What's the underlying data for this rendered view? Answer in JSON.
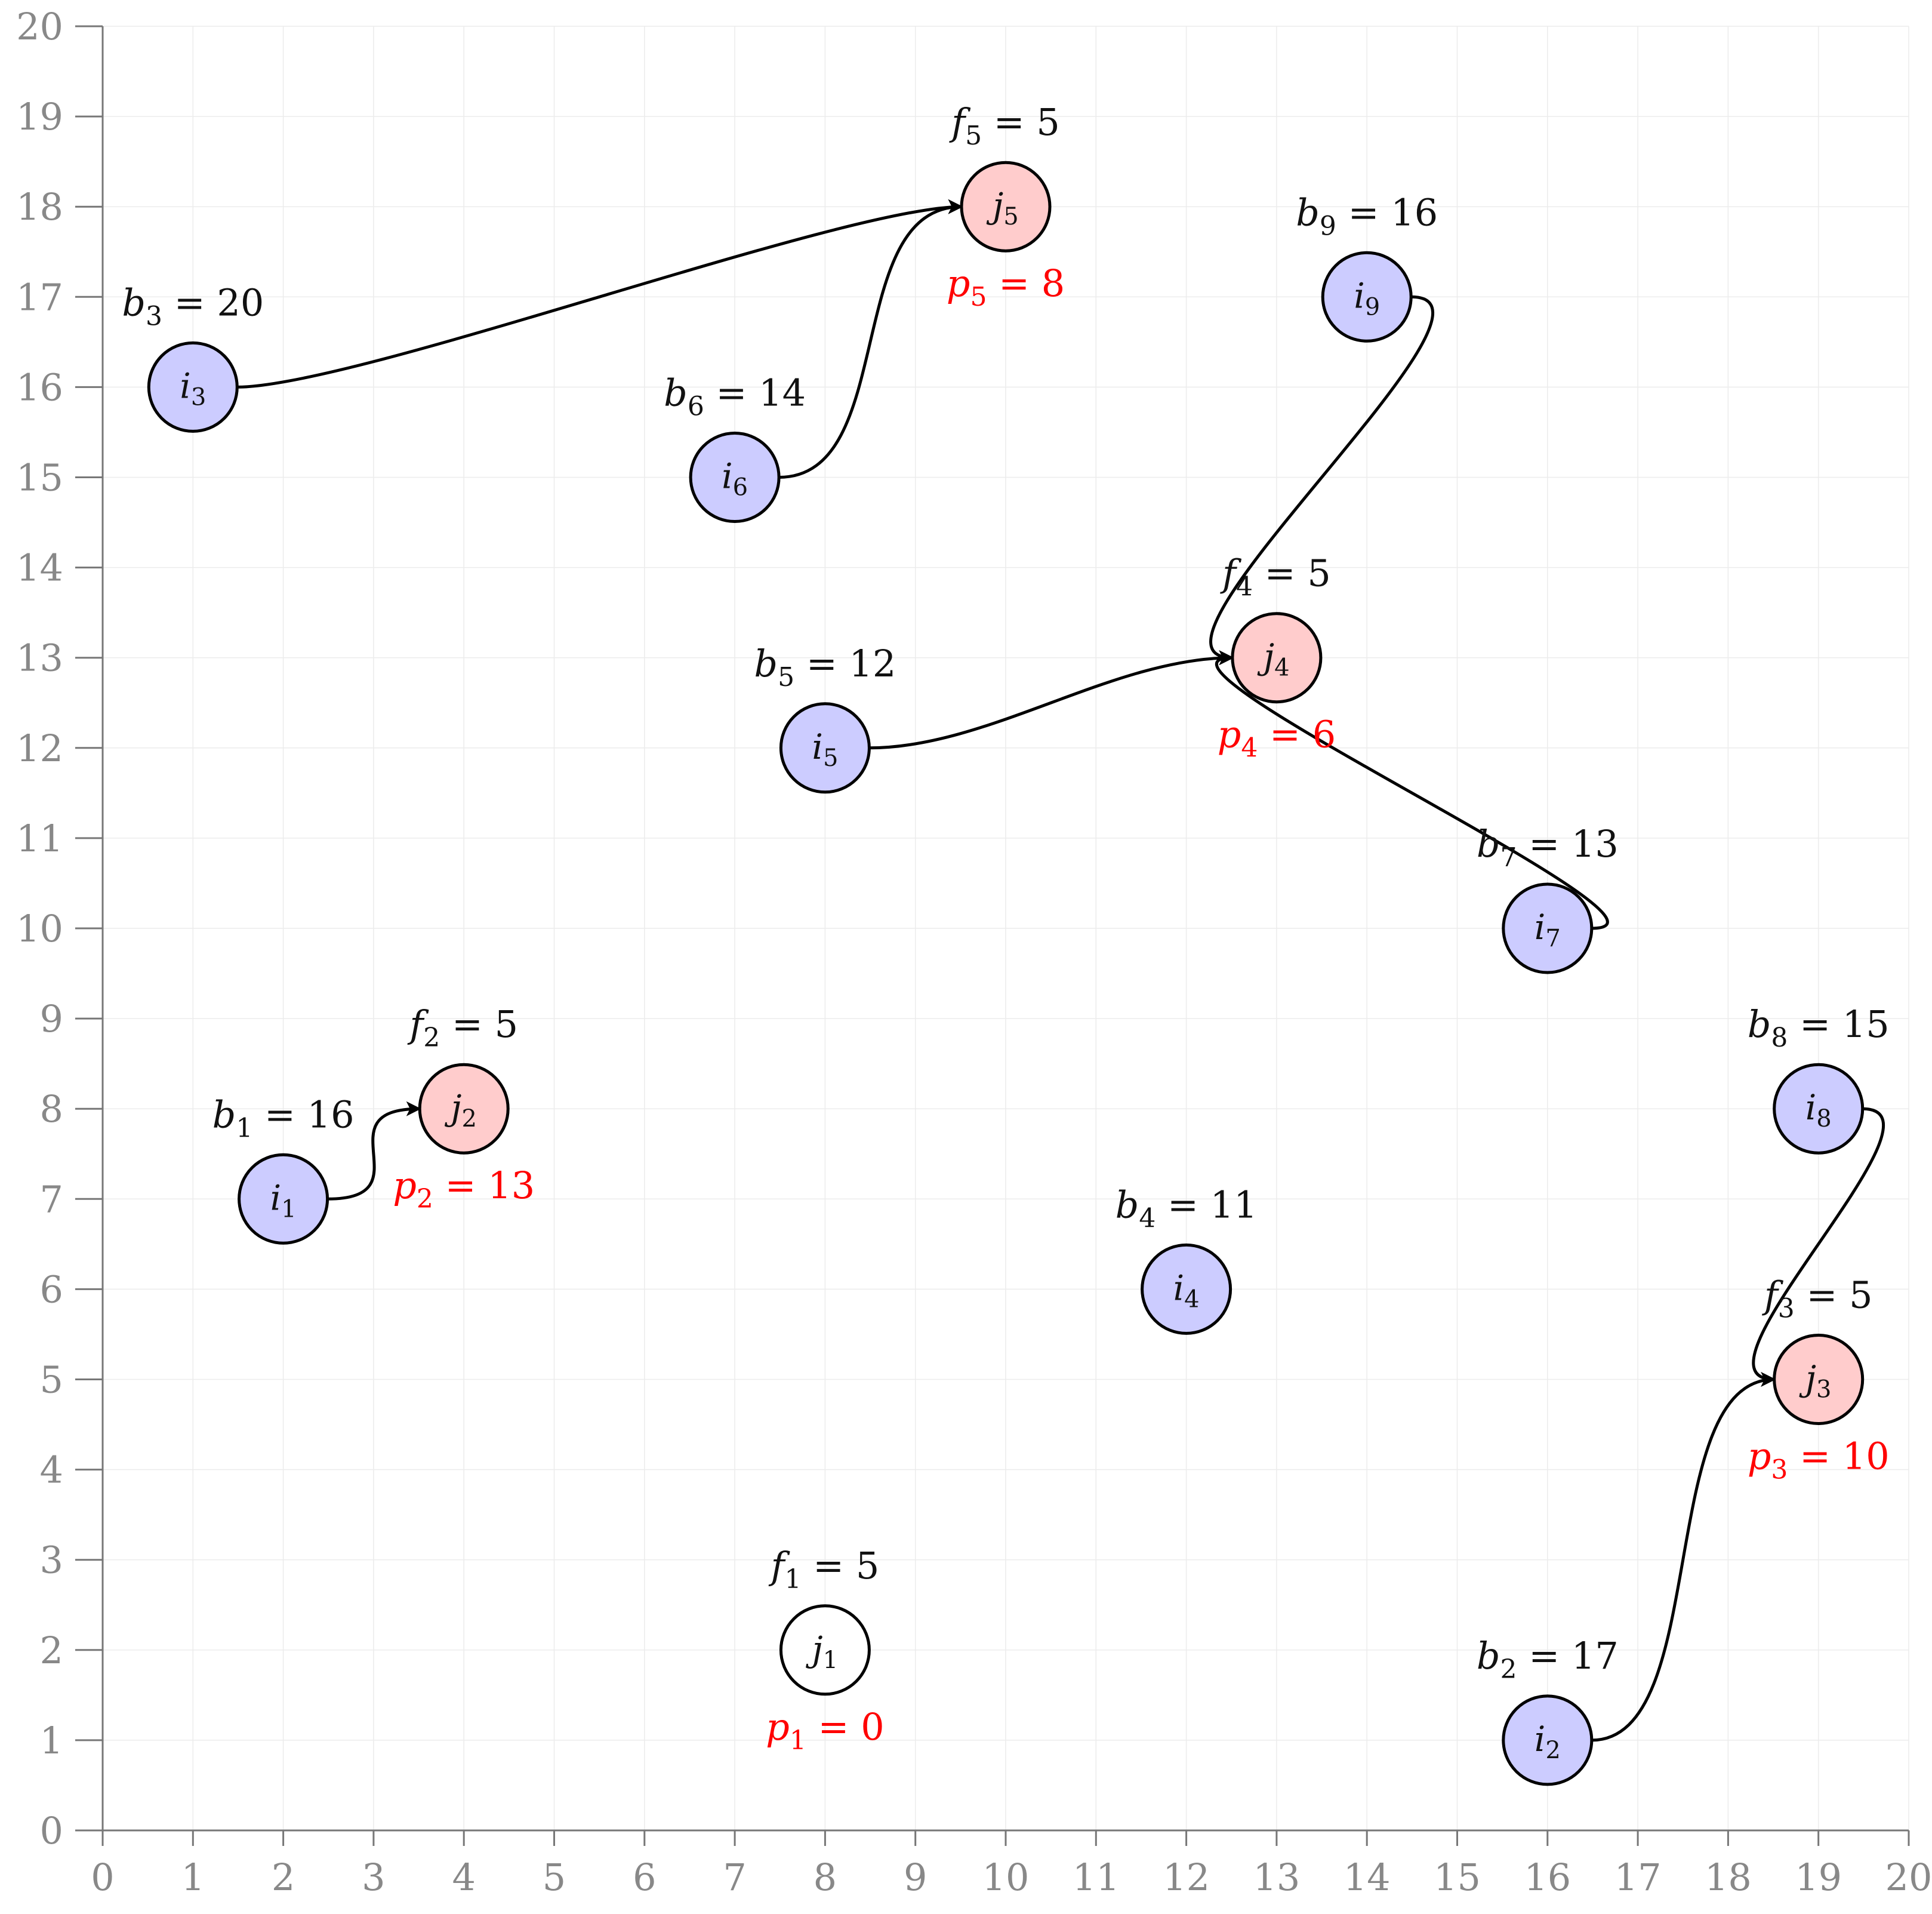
{
  "axes": {
    "x_min": 0,
    "x_max": 20,
    "y_min": 0,
    "y_max": 20,
    "x_ticks": [
      0,
      1,
      2,
      3,
      4,
      5,
      6,
      7,
      8,
      9,
      10,
      11,
      12,
      13,
      14,
      15,
      16,
      17,
      18,
      19,
      20
    ],
    "y_ticks": [
      0,
      1,
      2,
      3,
      4,
      5,
      6,
      7,
      8,
      9,
      10,
      11,
      12,
      13,
      14,
      15,
      16,
      17,
      18,
      19,
      20
    ],
    "grid": true
  },
  "colors": {
    "consumer_fill": "#ccccff",
    "facility_fill": "#ffcccc",
    "inactive_stroke": "#808080",
    "price_text": "#ff0000",
    "label_text": "#111111",
    "tick_text": "#888888"
  },
  "consumers": [
    {
      "id": "i1",
      "letter": "i",
      "sub": "1",
      "x": 2,
      "y": 7,
      "budget_var": "b",
      "budget": "16"
    },
    {
      "id": "i2",
      "letter": "i",
      "sub": "2",
      "x": 16,
      "y": 1,
      "budget_var": "b",
      "budget": "17"
    },
    {
      "id": "i3",
      "letter": "i",
      "sub": "3",
      "x": 1,
      "y": 16,
      "budget_var": "b",
      "budget": "20"
    },
    {
      "id": "i4",
      "letter": "i",
      "sub": "4",
      "x": 12,
      "y": 6,
      "budget_var": "b",
      "budget": "11"
    },
    {
      "id": "i5",
      "letter": "i",
      "sub": "5",
      "x": 8,
      "y": 12,
      "budget_var": "b",
      "budget": "12"
    },
    {
      "id": "i6",
      "letter": "i",
      "sub": "6",
      "x": 7,
      "y": 15,
      "budget_var": "b",
      "budget": "14"
    },
    {
      "id": "i7",
      "letter": "i",
      "sub": "7",
      "x": 16,
      "y": 10,
      "budget_var": "b",
      "budget": "13"
    },
    {
      "id": "i8",
      "letter": "i",
      "sub": "8",
      "x": 19,
      "y": 8,
      "budget_var": "b",
      "budget": "15"
    },
    {
      "id": "i9",
      "letter": "i",
      "sub": "9",
      "x": 14,
      "y": 17,
      "budget_var": "b",
      "budget": "16"
    }
  ],
  "facilities": [
    {
      "id": "j1",
      "letter": "j",
      "sub": "1",
      "x": 8,
      "y": 2,
      "active": false,
      "cost_var": "f",
      "cost": "5",
      "price_var": "p",
      "price": "0"
    },
    {
      "id": "j2",
      "letter": "j",
      "sub": "2",
      "x": 4,
      "y": 8,
      "active": true,
      "cost_var": "f",
      "cost": "5",
      "price_var": "p",
      "price": "13"
    },
    {
      "id": "j3",
      "letter": "j",
      "sub": "3",
      "x": 19,
      "y": 5,
      "active": true,
      "cost_var": "f",
      "cost": "5",
      "price_var": "p",
      "price": "10"
    },
    {
      "id": "j4",
      "letter": "j",
      "sub": "4",
      "x": 13,
      "y": 13,
      "active": true,
      "cost_var": "f",
      "cost": "5",
      "price_var": "p",
      "price": "6"
    },
    {
      "id": "j5",
      "letter": "j",
      "sub": "5",
      "x": 10,
      "y": 18,
      "active": true,
      "cost_var": "f",
      "cost": "5",
      "price_var": "p",
      "price": "8"
    }
  ],
  "assignments": [
    {
      "from": "i1",
      "to": "j2"
    },
    {
      "from": "i2",
      "to": "j3"
    },
    {
      "from": "i3",
      "to": "j5"
    },
    {
      "from": "i5",
      "to": "j4"
    },
    {
      "from": "i6",
      "to": "j5"
    },
    {
      "from": "i7",
      "to": "j4"
    },
    {
      "from": "i8",
      "to": "j3"
    },
    {
      "from": "i9",
      "to": "j4"
    }
  ],
  "equals_sign": "="
}
